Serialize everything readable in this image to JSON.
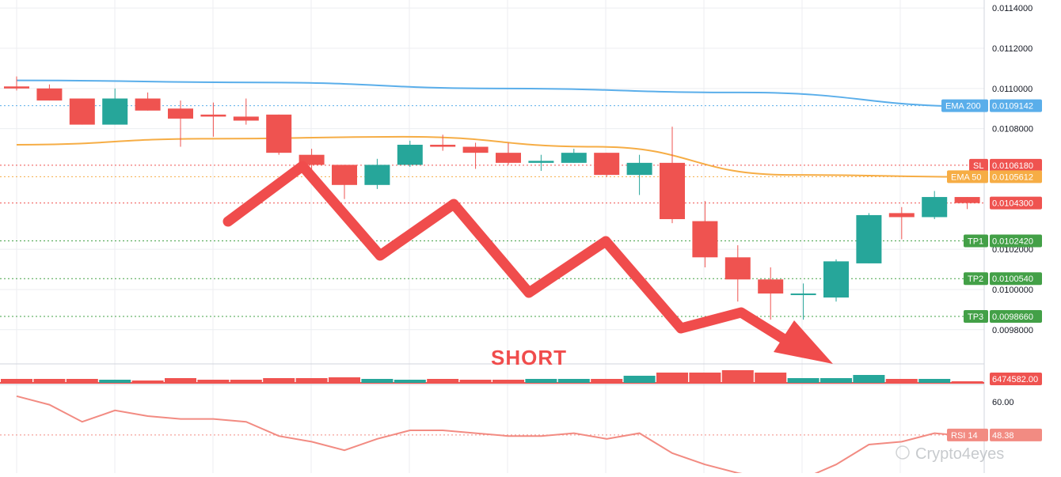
{
  "chart_data": {
    "type": "candlestick",
    "colors": {
      "up": "#26a69a",
      "down": "#ef5350",
      "ema200": "#5aaeea",
      "ema50": "#f6ad45",
      "sl": "#ef5350",
      "tp": "#43a047",
      "rsi": "#f28b82",
      "arrow": "#f04c4c",
      "grid": "#eceef1"
    },
    "price_axis": {
      "ylim": [
        0.00963,
        0.01144
      ],
      "ticks": [
        "0.0114000",
        "0.0112000",
        "0.0110000",
        "0.0108000",
        "0.0102000",
        "0.0100000",
        "0.0098000"
      ],
      "tick_values": [
        0.0114,
        0.0112,
        0.011,
        0.0108,
        0.0102,
        0.01,
        0.0098
      ]
    },
    "candles": [
      {
        "o": 0.01101,
        "h": 0.01106,
        "l": 0.01099,
        "c": 0.011
      },
      {
        "o": 0.011,
        "h": 0.01102,
        "l": 0.01094,
        "c": 0.01094
      },
      {
        "o": 0.01095,
        "h": 0.01095,
        "l": 0.01082,
        "c": 0.01082
      },
      {
        "o": 0.01082,
        "h": 0.011,
        "l": 0.01082,
        "c": 0.01095
      },
      {
        "o": 0.01095,
        "h": 0.01098,
        "l": 0.01089,
        "c": 0.01089
      },
      {
        "o": 0.0109,
        "h": 0.01094,
        "l": 0.01071,
        "c": 0.01085
      },
      {
        "o": 0.01087,
        "h": 0.01093,
        "l": 0.01076,
        "c": 0.01086
      },
      {
        "o": 0.01086,
        "h": 0.01095,
        "l": 0.01082,
        "c": 0.01084
      },
      {
        "o": 0.01087,
        "h": 0.01087,
        "l": 0.01067,
        "c": 0.01068
      },
      {
        "o": 0.01067,
        "h": 0.0107,
        "l": 0.01057,
        "c": 0.01062
      },
      {
        "o": 0.01062,
        "h": 0.01062,
        "l": 0.01045,
        "c": 0.01052
      },
      {
        "o": 0.01052,
        "h": 0.01065,
        "l": 0.0105,
        "c": 0.01062
      },
      {
        "o": 0.01062,
        "h": 0.01074,
        "l": 0.01061,
        "c": 0.01072
      },
      {
        "o": 0.01072,
        "h": 0.01077,
        "l": 0.01069,
        "c": 0.01071
      },
      {
        "o": 0.01071,
        "h": 0.01073,
        "l": 0.0106,
        "c": 0.01068
      },
      {
        "o": 0.01068,
        "h": 0.01073,
        "l": 0.01062,
        "c": 0.01063
      },
      {
        "o": 0.01063,
        "h": 0.01067,
        "l": 0.01059,
        "c": 0.01064
      },
      {
        "o": 0.01063,
        "h": 0.0107,
        "l": 0.01063,
        "c": 0.01068
      },
      {
        "o": 0.01068,
        "h": 0.01068,
        "l": 0.01056,
        "c": 0.01057
      },
      {
        "o": 0.01057,
        "h": 0.01067,
        "l": 0.01047,
        "c": 0.01063
      },
      {
        "o": 0.01063,
        "h": 0.01081,
        "l": 0.01033,
        "c": 0.01035
      },
      {
        "o": 0.01034,
        "h": 0.01044,
        "l": 0.01011,
        "c": 0.01016
      },
      {
        "o": 0.01016,
        "h": 0.01022,
        "l": 0.00994,
        "c": 0.01005
      },
      {
        "o": 0.01005,
        "h": 0.01011,
        "l": 0.00985,
        "c": 0.00998
      },
      {
        "o": 0.00998,
        "h": 0.01003,
        "l": 0.00985,
        "c": 0.00998
      },
      {
        "o": 0.00996,
        "h": 0.01015,
        "l": 0.00994,
        "c": 0.01014
      },
      {
        "o": 0.01013,
        "h": 0.01038,
        "l": 0.01013,
        "c": 0.01037
      },
      {
        "o": 0.01038,
        "h": 0.01041,
        "l": 0.01025,
        "c": 0.01036
      },
      {
        "o": 0.01036,
        "h": 0.01049,
        "l": 0.01035,
        "c": 0.01046
      },
      {
        "o": 0.01046,
        "h": 0.01046,
        "l": 0.0104,
        "c": 0.01043
      }
    ],
    "ema200": [
      0.01104,
      0.01103,
      0.011,
      0.01098,
      0.01091
    ],
    "ema50": [
      0.01072,
      0.01075,
      0.01076,
      0.01071,
      0.01057,
      0.01056
    ],
    "levels": [
      {
        "name": "EMA 200",
        "value": 0.0109142,
        "label": "0.0109142",
        "kind": "ema200"
      },
      {
        "name": "SL",
        "value": 0.010618,
        "label": "0.0106180",
        "kind": "sl"
      },
      {
        "name": "EMA 50",
        "value": 0.0105612,
        "label": "0.0105612",
        "kind": "ema50"
      },
      {
        "name": "",
        "value": 0.01043,
        "label": "0.0104300",
        "kind": "entry"
      },
      {
        "name": "TP1",
        "value": 0.010242,
        "label": "0.0102420",
        "kind": "tp"
      },
      {
        "name": "TP2",
        "value": 0.010054,
        "label": "0.0100540",
        "kind": "tp"
      },
      {
        "name": "TP3",
        "value": 0.009866,
        "label": "0.0098660",
        "kind": "tp"
      }
    ],
    "annotation": {
      "text": "SHORT"
    },
    "volume": {
      "label": "6474582.00",
      "values": [
        0.25,
        0.25,
        0.25,
        0.2,
        0.15,
        0.3,
        0.2,
        0.2,
        0.3,
        0.3,
        0.35,
        0.25,
        0.2,
        0.25,
        0.2,
        0.2,
        0.25,
        0.25,
        0.25,
        0.45,
        0.65,
        0.65,
        0.8,
        0.65,
        0.3,
        0.3,
        0.5,
        0.25,
        0.25,
        0.05
      ]
    },
    "rsi": {
      "name": "RSI 14",
      "label": "48.38",
      "tick": "60.00",
      "ylim": [
        35,
        65
      ],
      "values": [
        62,
        59,
        53,
        57,
        55,
        54,
        54,
        53,
        48,
        46,
        43,
        47,
        50,
        50,
        49,
        48,
        48,
        49,
        47,
        49,
        42,
        38,
        35,
        33,
        33,
        38,
        45,
        46,
        49,
        48
      ]
    },
    "watermark": "Crypto4eyes"
  }
}
